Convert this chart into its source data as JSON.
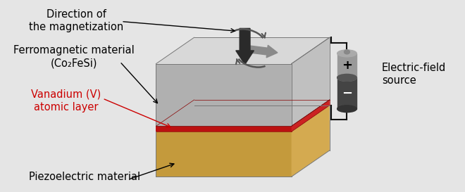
{
  "bg_color": "#e5e5e5",
  "ferro_color_front": "#b0b0b0",
  "ferro_color_right": "#c0c0c0",
  "ferro_color_top": "#d8d8d8",
  "piezo_color_front": "#c49a3c",
  "piezo_color_right": "#d4aa50",
  "piezo_color_top": "#dab96a",
  "vanadium_color_front": "#bb1111",
  "vanadium_color_right": "#cc2222",
  "vanadium_color_top": "#dd3333",
  "arrow_dark": "#2a2a2a",
  "arrow_gray": "#8a8a8a",
  "curve_color": "#555555",
  "text_vanadium_color": "#cc0000",
  "wire_color": "#111111",
  "battery_top_color": "#aaaaaa",
  "battery_bot_color": "#444444",
  "label_dir": "Direction of\nthe magnetization",
  "label_ferro": "Ferromagnetic material\n(Co₂FeSi)",
  "label_vanadium": "Vanadium (V)\natomic layer",
  "label_piezo": "Piezoelectric material",
  "label_battery": "Electric-field\nsource"
}
